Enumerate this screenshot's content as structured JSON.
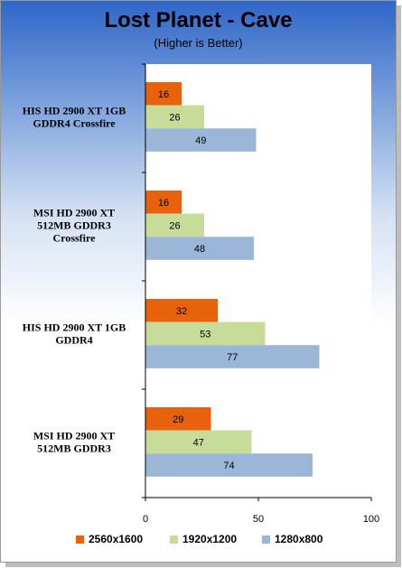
{
  "chart_data": {
    "type": "bar",
    "orientation": "horizontal",
    "title": "Lost Planet - Cave",
    "subtitle": "(Higher is Better)",
    "categories": [
      [
        "HIS HD 2900 XT 1GB",
        "GDDR4 Crossfire"
      ],
      [
        "MSI HD 2900 XT",
        "512MB GDDR3",
        "Crossfire"
      ],
      [
        "HIS HD 2900 XT 1GB",
        "GDDR4"
      ],
      [
        "MSI HD 2900 XT",
        "512MB GDDR3"
      ]
    ],
    "series": [
      {
        "name": "2560x1600",
        "color": "#e8620e",
        "values": [
          16,
          16,
          32,
          29
        ]
      },
      {
        "name": "1920x1200",
        "color": "#c8dc9a",
        "values": [
          26,
          26,
          53,
          47
        ]
      },
      {
        "name": "1280x800",
        "color": "#9cb6d8",
        "values": [
          49,
          48,
          77,
          74
        ]
      }
    ],
    "xlim": [
      0,
      100
    ],
    "xticks": [
      0,
      50,
      100
    ],
    "grid": false,
    "legend_position": "bottom"
  }
}
